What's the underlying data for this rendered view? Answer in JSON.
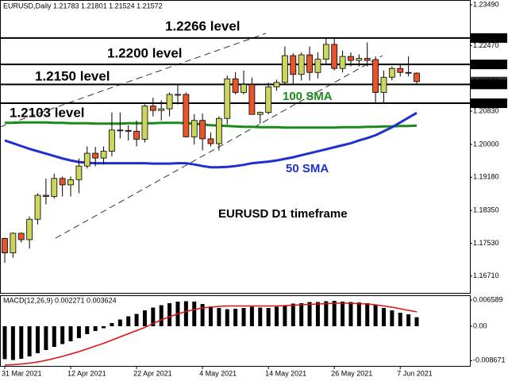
{
  "chart_data": {
    "type": "candlestick",
    "info": "EURUSD,Daily  1.21783 1.21801 1.21524 1.21572",
    "categories": [
      "31 Mar 2021",
      null,
      null,
      null,
      null,
      null,
      null,
      null,
      "12 Apr 2021",
      null,
      null,
      null,
      null,
      null,
      null,
      null,
      "22 Apr 2021",
      null,
      null,
      null,
      null,
      null,
      null,
      null,
      "4 May 2021",
      null,
      null,
      null,
      null,
      null,
      null,
      null,
      "14 May 2021",
      null,
      null,
      null,
      null,
      null,
      null,
      null,
      "26 May 2021",
      null,
      null,
      null,
      null,
      null,
      null,
      null,
      "7 Jun 2021",
      null,
      null
    ],
    "open": [
      1.1765,
      1.1729,
      1.1778,
      1.1762,
      1.1813,
      1.1873,
      1.187,
      1.1915,
      1.1899,
      1.1912,
      1.1946,
      1.1978,
      1.1966,
      1.1983,
      1.2036,
      1.2035,
      1.2033,
      1.2013,
      1.2096,
      1.2085,
      1.2089,
      1.2125,
      1.2125,
      1.2019,
      1.206,
      1.2014,
      1.2002,
      1.2065,
      1.2164,
      1.213,
      1.215,
      1.2075,
      1.208,
      1.2144,
      1.2155,
      1.2222,
      1.2175,
      1.2224,
      1.218,
      1.2213,
      1.225,
      1.219,
      1.222,
      1.221,
      1.2215,
      1.2212,
      1.213,
      1.2168,
      1.219,
      1.218,
      1.21783
    ],
    "high": [
      1.1767,
      1.178,
      1.178,
      1.182,
      1.1878,
      1.1915,
      1.1927,
      1.192,
      1.192,
      1.1965,
      1.1995,
      1.1994,
      1.1995,
      1.208,
      1.208,
      1.2048,
      1.206,
      1.21,
      1.2117,
      1.211,
      1.213,
      1.215,
      1.213,
      1.2076,
      1.2077,
      1.203,
      1.207,
      1.2172,
      1.2181,
      1.2185,
      1.2167,
      1.2082,
      1.2155,
      1.2162,
      1.2245,
      1.2228,
      1.223,
      1.2245,
      1.223,
      1.2265,
      1.2265,
      1.2235,
      1.223,
      1.2225,
      1.2255,
      1.222,
      1.2185,
      1.2195,
      1.22,
      1.222,
      1.21801
    ],
    "low": [
      1.1704,
      1.1717,
      1.1755,
      1.174,
      1.18,
      1.185,
      1.1865,
      1.187,
      1.187,
      1.1878,
      1.194,
      1.1945,
      1.195,
      1.197,
      1.2015,
      1.201,
      1.1995,
      1.2005,
      1.207,
      1.206,
      1.207,
      1.21,
      1.2018,
      1.2,
      1.1985,
      1.1995,
      1.1985,
      1.205,
      1.2125,
      1.2125,
      1.2075,
      1.2052,
      1.2075,
      1.2134,
      1.215,
      1.2152,
      1.216,
      1.216,
      1.2165,
      1.22,
      1.2185,
      1.218,
      1.2195,
      1.2195,
      1.2195,
      1.2105,
      1.2104,
      1.216,
      1.217,
      1.217,
      1.21524
    ],
    "close": [
      1.1729,
      1.1778,
      1.1762,
      1.1813,
      1.1873,
      1.187,
      1.1915,
      1.1899,
      1.1912,
      1.1946,
      1.1978,
      1.1966,
      1.1983,
      1.2036,
      1.2035,
      1.2033,
      1.2013,
      1.2096,
      1.2085,
      1.2089,
      1.2125,
      1.2125,
      1.2019,
      1.206,
      1.2014,
      1.2002,
      1.2065,
      1.2164,
      1.213,
      1.215,
      1.2075,
      1.208,
      1.2144,
      1.2155,
      1.2222,
      1.2175,
      1.2224,
      1.218,
      1.2213,
      1.225,
      1.219,
      1.222,
      1.221,
      1.2215,
      1.221,
      1.213,
      1.2168,
      1.219,
      1.218,
      1.2178,
      1.21572
    ],
    "up_color": "#cdd55c",
    "down_color": "#e8552b",
    "ylim": [
      1.1627,
      1.2361
    ],
    "yticks": [
      {
        "value": 1.2349,
        "label": "1.23490"
      },
      {
        "value": 1.2247,
        "label": "1.22470"
      },
      {
        "value": 1.2083,
        "label": "1.20830"
      },
      {
        "value": 1.2,
        "label": "1.20000"
      },
      {
        "value": 1.1918,
        "label": "1.19180"
      },
      {
        "value": 1.1835,
        "label": "1.18350"
      },
      {
        "value": 1.1753,
        "label": "1.17530"
      },
      {
        "value": 1.1671,
        "label": "1.16710"
      }
    ],
    "last_price": {
      "value": 1.21572,
      "label": "1.21572"
    },
    "levels": [
      {
        "value": 1.2266,
        "label": "1.22660",
        "text": "1.2266 level"
      },
      {
        "value": 1.22,
        "label": "1.22000",
        "text": "1.2200 level"
      },
      {
        "value": 1.215,
        "label": "1.21500",
        "text": "1.2150 level"
      },
      {
        "value": 1.2103,
        "label": "1.21030",
        "text": "1.2103 level"
      }
    ],
    "sma": [
      {
        "name": "100 SMA",
        "color": "#1a8a1a",
        "values": [
          1.2054,
          1.2054,
          1.2055,
          1.2055,
          1.2055,
          1.2055,
          1.2054,
          1.2054,
          1.2053,
          1.2053,
          1.2053,
          1.2052,
          1.2052,
          1.2052,
          1.2052,
          1.2053,
          1.2053,
          1.2053,
          1.2053,
          1.2054,
          1.2054,
          1.2054,
          1.2053,
          1.2052,
          1.205,
          1.2048,
          1.2047,
          1.2046,
          1.2045,
          1.2044,
          1.2044,
          1.2043,
          1.2043,
          1.2043,
          1.2042,
          1.2042,
          1.2042,
          1.2042,
          1.2042,
          1.2042,
          1.2042,
          1.2043,
          1.2043,
          1.2043,
          1.2044,
          1.2044,
          1.2045,
          1.2045,
          1.2046,
          1.2046,
          1.2047
        ]
      },
      {
        "name": "50 SMA",
        "color": "#1f2fd0",
        "values": [
          1.201,
          1.2003,
          1.1996,
          1.1989,
          1.1983,
          1.1977,
          1.1971,
          1.1965,
          1.196,
          1.1956,
          1.1954,
          1.1953,
          1.1953,
          1.1953,
          1.1953,
          1.1953,
          1.1953,
          1.1953,
          1.1952,
          1.1952,
          1.1952,
          1.1953,
          1.1953,
          1.195,
          1.1946,
          1.1943,
          1.1943,
          1.1944,
          1.1946,
          1.1949,
          1.1953,
          1.1955,
          1.1957,
          1.196,
          1.1964,
          1.1968,
          1.1973,
          1.1978,
          1.1983,
          1.1988,
          1.1993,
          1.1998,
          1.2003,
          1.201,
          1.2016,
          1.2023,
          1.2033,
          1.2043,
          1.2055,
          1.2067,
          1.2079
        ]
      }
    ],
    "annotation": "EURUSD D1 timeframe",
    "macd": {
      "title": "MACD(12,26,9) 0.002271 0.003624",
      "ylim": [
        -0.0102,
        0.0078
      ],
      "yticks": [
        0.006589,
        {
          "value": 0,
          "label": "0.00"
        },
        -0.008671
      ],
      "histogram": [
        -0.0083,
        -0.0085,
        -0.0082,
        -0.0076,
        -0.0068,
        -0.006,
        -0.0052,
        -0.0045,
        -0.0038,
        -0.003,
        -0.002,
        -0.0012,
        -0.0005,
        0.0008,
        0.0017,
        0.0025,
        0.0031,
        0.004,
        0.0047,
        0.0053,
        0.0058,
        0.0062,
        0.0063,
        0.0062,
        0.0056,
        0.005,
        0.0046,
        0.0043,
        0.0044,
        0.0046,
        0.0049,
        0.0047,
        0.0046,
        0.0049,
        0.0053,
        0.0057,
        0.0058,
        0.0061,
        0.0061,
        0.0063,
        0.0064,
        0.0062,
        0.0061,
        0.006,
        0.0058,
        0.0053,
        0.0046,
        0.004,
        0.0034,
        0.003,
        0.002271
      ],
      "histogram_color": "#000000",
      "signal": [
        -0.0098,
        -0.0097,
        -0.0095,
        -0.0093,
        -0.009,
        -0.0086,
        -0.0081,
        -0.0076,
        -0.007,
        -0.0064,
        -0.0057,
        -0.005,
        -0.0043,
        -0.0035,
        -0.0027,
        -0.0019,
        -0.0011,
        -0.0003,
        0.0007,
        0.0016,
        0.0024,
        0.0031,
        0.0037,
        0.0042,
        0.0046,
        0.0048,
        0.005,
        0.0051,
        0.0051,
        0.0051,
        0.0051,
        0.0051,
        0.0051,
        0.0051,
        0.0052,
        0.0053,
        0.0054,
        0.0055,
        0.0056,
        0.0057,
        0.0058,
        0.0058,
        0.0058,
        0.0057,
        0.0056,
        0.0054,
        0.0051,
        0.0048,
        0.0044,
        0.004,
        0.003624
      ],
      "signal_color": "#e01010"
    }
  }
}
